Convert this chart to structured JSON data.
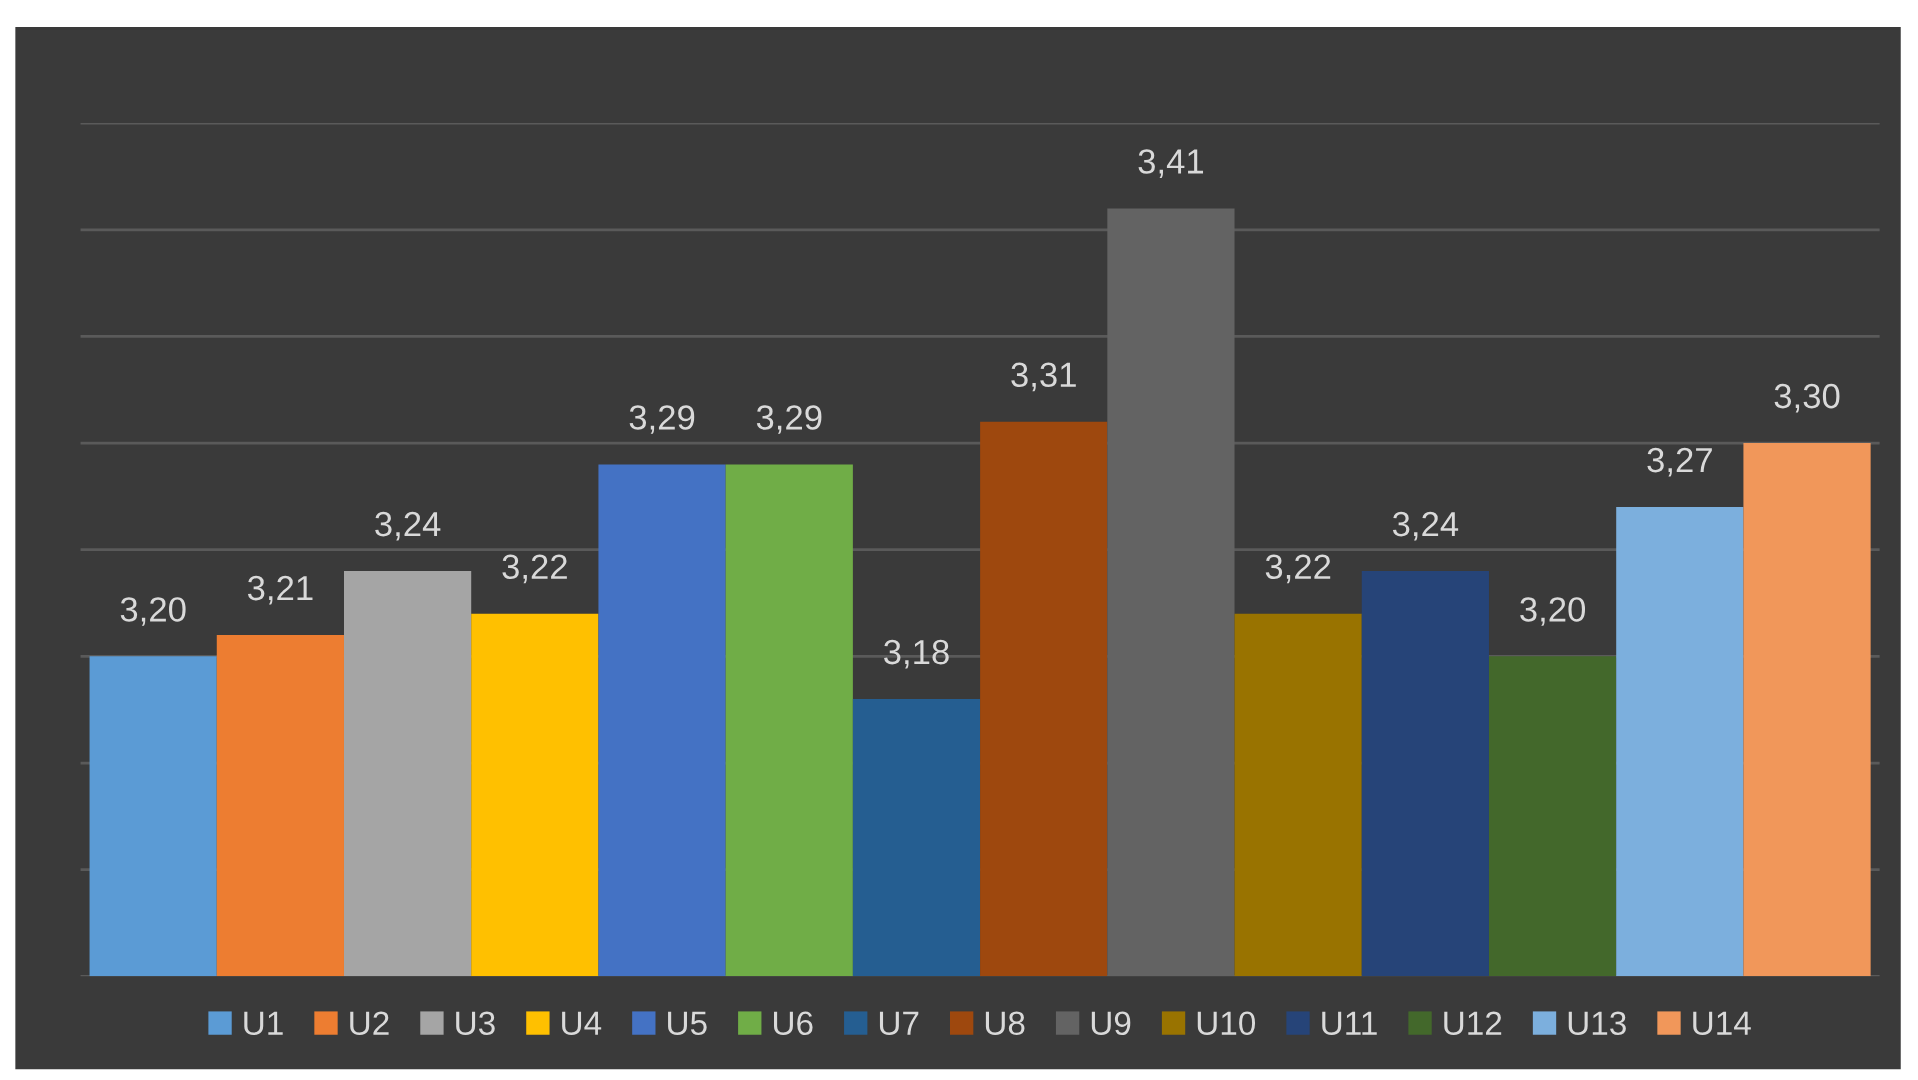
{
  "chart_data": {
    "type": "bar",
    "categories": [
      null
    ],
    "series": [
      {
        "name": "U1",
        "color": "#5b9bd5",
        "values": [
          3.2
        ],
        "value_labels": [
          "3,20"
        ]
      },
      {
        "name": "U2",
        "color": "#ed7d31",
        "values": [
          3.21
        ],
        "value_labels": [
          "3,21"
        ]
      },
      {
        "name": "U3",
        "color": "#a5a5a5",
        "values": [
          3.24
        ],
        "value_labels": [
          "3,24"
        ]
      },
      {
        "name": "U4",
        "color": "#ffc000",
        "values": [
          3.22
        ],
        "value_labels": [
          "3,22"
        ]
      },
      {
        "name": "U5",
        "color": "#4472c4",
        "values": [
          3.29
        ],
        "value_labels": [
          "3,29"
        ]
      },
      {
        "name": "U6",
        "color": "#70ad47",
        "values": [
          3.29
        ],
        "value_labels": [
          "3,29"
        ]
      },
      {
        "name": "U7",
        "color": "#255e91",
        "values": [
          3.18
        ],
        "value_labels": [
          "3,18"
        ]
      },
      {
        "name": "U8",
        "color": "#9e480e",
        "values": [
          3.31
        ],
        "value_labels": [
          "3,31"
        ]
      },
      {
        "name": "U9",
        "color": "#636363",
        "values": [
          3.41
        ],
        "value_labels": [
          "3,41"
        ]
      },
      {
        "name": "U10",
        "color": "#997300",
        "values": [
          3.22
        ],
        "value_labels": [
          "3,22"
        ]
      },
      {
        "name": "U11",
        "color": "#264478",
        "values": [
          3.24
        ],
        "value_labels": [
          "3,24"
        ]
      },
      {
        "name": "U12",
        "color": "#43682b",
        "values": [
          3.2
        ],
        "value_labels": [
          "3,20"
        ]
      },
      {
        "name": "U13",
        "color": "#7cafdd",
        "values": [
          3.27
        ],
        "value_labels": [
          "3,27"
        ]
      },
      {
        "name": "U14",
        "color": "#f1975a",
        "values": [
          3.3
        ],
        "value_labels": [
          "3,30"
        ]
      }
    ],
    "ylim": [
      3.05,
      3.45
    ],
    "yticks": [
      {
        "value": 3.05,
        "label": null
      },
      {
        "value": 3.1,
        "label": null
      },
      {
        "value": 3.15,
        "label": null
      },
      {
        "value": 3.2,
        "label": null
      },
      {
        "value": 3.25,
        "label": null
      },
      {
        "value": 3.3,
        "label": null
      },
      {
        "value": 3.35,
        "label": null
      },
      {
        "value": 3.4,
        "label": null
      },
      {
        "value": 3.45,
        "label": null
      }
    ],
    "grid": "y",
    "legend": "bottom"
  }
}
